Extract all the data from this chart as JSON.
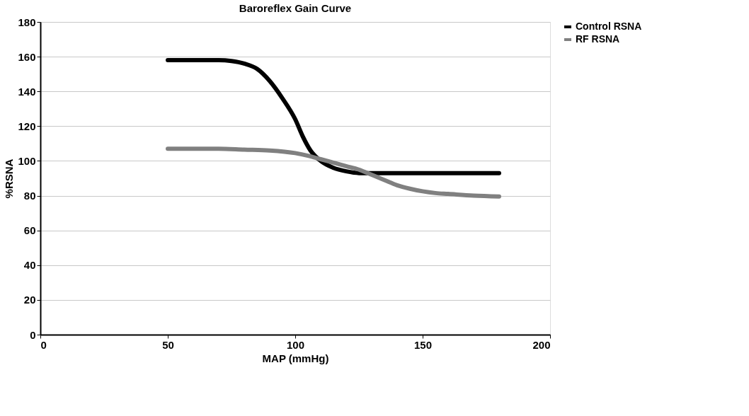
{
  "chart_data": {
    "type": "line",
    "title": "Baroreflex Gain Curve",
    "xlabel": "MAP (mmHg)",
    "ylabel": "%RSNA",
    "series": [
      {
        "name": "Control RSNA",
        "color": "#000000",
        "x": [
          50,
          60,
          70,
          75,
          80,
          85,
          90,
          95,
          100,
          103,
          106,
          110,
          115,
          120,
          125,
          130,
          140,
          150,
          160,
          170,
          180
        ],
        "values": [
          158,
          158,
          158,
          157.5,
          156,
          153,
          146,
          136,
          124,
          114,
          106,
          100,
          96,
          94,
          93,
          93,
          93,
          93,
          93,
          93,
          93
        ]
      },
      {
        "name": "RF RSNA",
        "color": "#808080",
        "x": [
          50,
          60,
          70,
          80,
          90,
          100,
          105,
          110,
          115,
          120,
          125,
          130,
          135,
          140,
          145,
          150,
          155,
          160,
          170,
          180
        ],
        "values": [
          107,
          107,
          107,
          106.5,
          106,
          104.5,
          103,
          101,
          99,
          97,
          95,
          92,
          89,
          86,
          84,
          82.5,
          81.5,
          81,
          80,
          79.5
        ]
      }
    ],
    "xlim": [
      0,
      200
    ],
    "xticks": [
      0,
      50,
      100,
      150,
      200
    ],
    "ylim": [
      0,
      180
    ],
    "yticks": [
      0,
      20,
      40,
      60,
      80,
      100,
      120,
      140,
      160,
      180
    ],
    "grid": "y",
    "legend": "right",
    "marker": "none",
    "line_style": "solid"
  }
}
